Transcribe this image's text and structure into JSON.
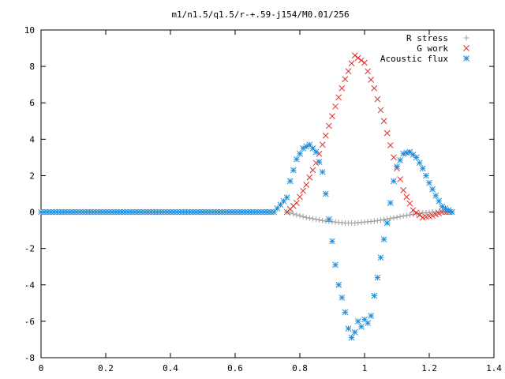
{
  "chart_data": {
    "type": "scatter",
    "title": "m1/n1.5/q1.5/r-+.59-j154/M0.01/256",
    "xlabel": "",
    "ylabel": "",
    "xlim": [
      0,
      1.4
    ],
    "ylim": [
      -8,
      10
    ],
    "xticks": [
      0,
      0.2,
      0.4,
      0.6,
      0.8,
      1,
      1.2,
      1.4
    ],
    "xtick_labels": [
      "0",
      "0.2",
      "0.4",
      "0.6",
      "0.8",
      "1",
      "1.2",
      "1.4"
    ],
    "yticks": [
      -8,
      -6,
      -4,
      -2,
      0,
      2,
      4,
      6,
      8,
      10
    ],
    "ytick_labels": [
      "-8",
      "-6",
      "-4",
      "-2",
      "0",
      "2",
      "4",
      "6",
      "8",
      "10"
    ],
    "grid": false,
    "legend_position": "top-right",
    "series": [
      {
        "name": "R stress",
        "marker": "plus",
        "color": "#a0a0a0",
        "x": [
          0.76,
          0.79,
          0.82,
          0.85,
          0.88,
          0.91,
          0.94,
          0.97,
          1.0,
          1.03,
          1.06,
          1.09,
          1.12,
          1.15,
          1.18,
          1.21,
          1.24,
          1.27
        ],
        "y": [
          0.0,
          -0.15,
          -0.3,
          -0.4,
          -0.5,
          -0.55,
          -0.6,
          -0.6,
          -0.55,
          -0.5,
          -0.42,
          -0.32,
          -0.22,
          -0.12,
          -0.05,
          0.0,
          0.03,
          0.0
        ]
      },
      {
        "name": "G work",
        "marker": "cross",
        "color": "#e0302c",
        "x": [
          0.76,
          0.79,
          0.82,
          0.85,
          0.88,
          0.91,
          0.94,
          0.97,
          1.0,
          1.03,
          1.06,
          1.09,
          1.12,
          1.15,
          1.18,
          1.21,
          1.24,
          1.27
        ],
        "y": [
          0.0,
          0.5,
          1.5,
          2.7,
          4.2,
          5.8,
          7.3,
          8.6,
          8.2,
          6.8,
          5.0,
          3.0,
          1.2,
          0.1,
          -0.3,
          -0.2,
          0.0,
          0.0
        ]
      },
      {
        "name": "Acoustic flux",
        "marker": "star",
        "color": "#1f8ddb",
        "x": [
          0.0,
          0.04,
          0.08,
          0.12,
          0.16,
          0.2,
          0.24,
          0.28,
          0.32,
          0.36,
          0.4,
          0.44,
          0.48,
          0.52,
          0.56,
          0.6,
          0.64,
          0.68,
          0.72,
          0.76,
          0.77,
          0.79,
          0.81,
          0.83,
          0.85,
          0.87,
          0.88,
          0.89,
          0.9,
          0.91,
          0.92,
          0.93,
          0.94,
          0.95,
          0.96,
          0.97,
          0.98,
          0.99,
          1.0,
          1.01,
          1.02,
          1.03,
          1.04,
          1.05,
          1.06,
          1.07,
          1.08,
          1.09,
          1.1,
          1.12,
          1.14,
          1.16,
          1.18,
          1.2,
          1.22,
          1.24,
          1.26,
          1.27
        ],
        "y": [
          0.0,
          0.0,
          0.0,
          0.0,
          0.0,
          0.0,
          0.0,
          0.0,
          0.0,
          0.0,
          0.0,
          0.0,
          0.0,
          0.0,
          0.0,
          0.0,
          0.0,
          0.0,
          0.0,
          0.8,
          1.7,
          2.9,
          3.5,
          3.7,
          3.3,
          2.2,
          1.0,
          -0.4,
          -1.6,
          -2.9,
          -4.0,
          -4.7,
          -5.5,
          -6.4,
          -6.9,
          -6.6,
          -6.0,
          -6.3,
          -5.9,
          -6.1,
          -5.7,
          -4.6,
          -3.6,
          -2.5,
          -1.5,
          -0.6,
          0.5,
          1.7,
          2.5,
          3.2,
          3.3,
          3.0,
          2.4,
          1.6,
          0.9,
          0.3,
          0.1,
          0.0
        ]
      }
    ]
  }
}
